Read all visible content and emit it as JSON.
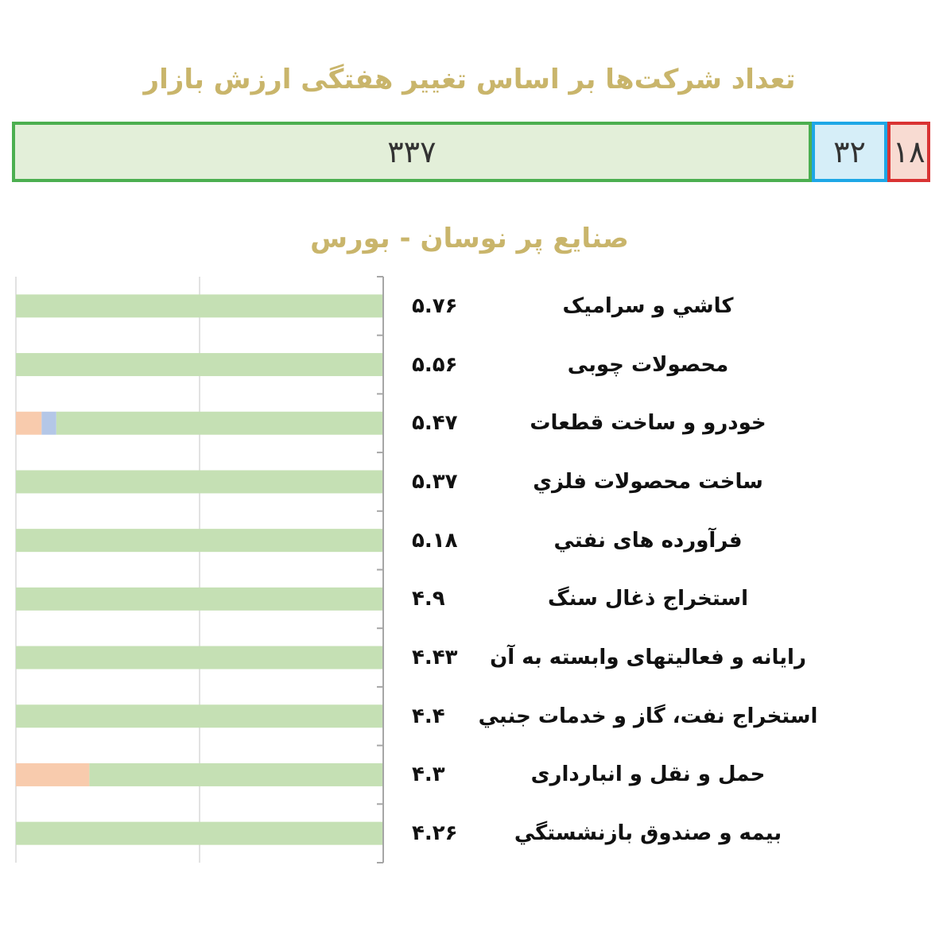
{
  "summary": {
    "title": "تعداد شرکت‌ها بر اساس تغییر هفتگی ارزش بازار",
    "segments": [
      {
        "value": 337,
        "label": "۳۳۷",
        "fill": "#e3efd9",
        "border": "#4caf50"
      },
      {
        "value": 32,
        "label": "۳۲",
        "fill": "#d6eef8",
        "border": "#1ea7e6"
      },
      {
        "value": 18,
        "label": "۱۸",
        "fill": "#f8dbd2",
        "border": "#d93333"
      }
    ]
  },
  "chart_data": {
    "type": "bar",
    "title": "صنایع پر نوسان - بورس",
    "orientation": "horizontal-stacked",
    "categories": [
      "کاشي و سراميک",
      "محصولات چوبی",
      "خودرو و ساخت قطعات",
      "ساخت محصولات فلزي",
      "فرآورده های نفتي",
      "استخراج ذغال سنگ",
      "رایانه و فعالیتهای وابسته به آن",
      "استخراج نفت، گاز و خدمات جنبي",
      "حمل و نقل و انبارداری",
      "بیمه و صندوق بازنشستگي"
    ],
    "value_labels": [
      "۵.۷۶",
      "۵.۵۶",
      "۵.۴۷",
      "۵.۳۷",
      "۵.۱۸",
      "۴.۹",
      "۴.۴۳",
      "۴.۴",
      "۴.۳",
      "۴.۲۶"
    ],
    "values": [
      5.76,
      5.56,
      5.47,
      5.37,
      5.18,
      4.9,
      4.43,
      4.4,
      4.3,
      4.26
    ],
    "series": [
      {
        "color": "#f8cbad",
        "values": [
          0,
          0,
          7,
          0,
          0,
          0,
          0,
          0,
          20,
          0
        ]
      },
      {
        "color": "#b4c7e7",
        "values": [
          0,
          0,
          4,
          0,
          0,
          0,
          0,
          0,
          0,
          0
        ]
      },
      {
        "color": "#c5e0b4",
        "values": [
          100,
          100,
          89,
          100,
          100,
          100,
          100,
          100,
          80,
          100
        ]
      }
    ],
    "xlim": [
      0,
      100
    ],
    "grid": true
  }
}
